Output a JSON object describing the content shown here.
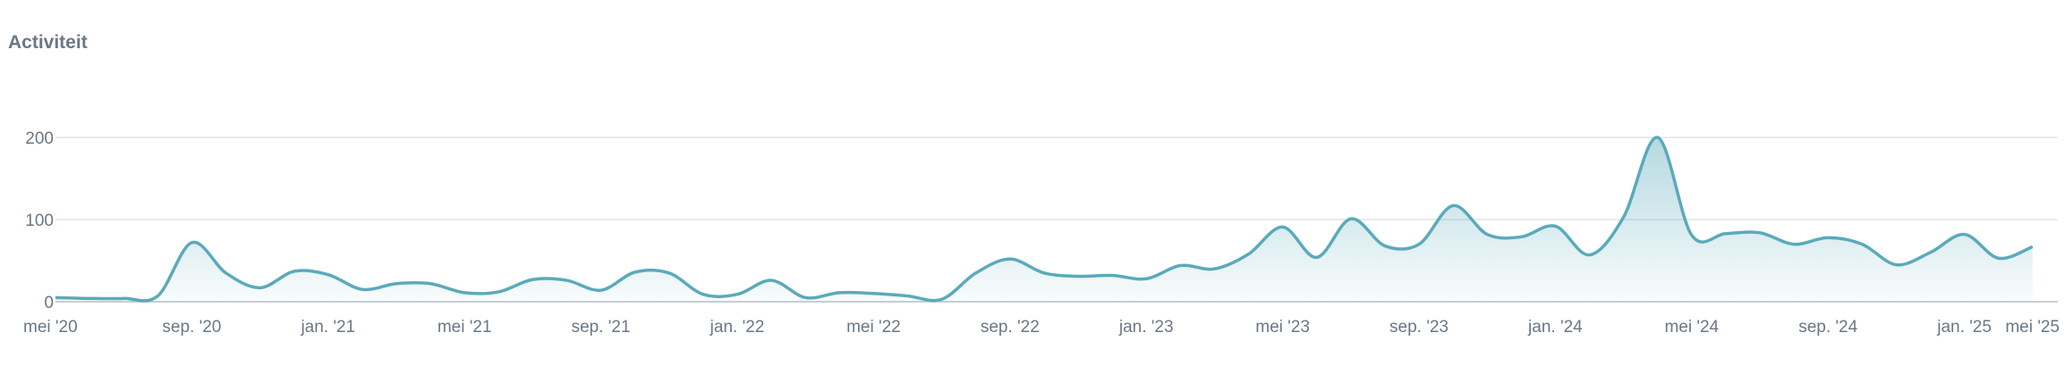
{
  "chart_title": "Activiteit",
  "chart_data": {
    "type": "area",
    "title": "Activiteit",
    "xlabel": "",
    "ylabel": "",
    "ylim": [
      0,
      245
    ],
    "yticks": [
      0,
      100,
      200
    ],
    "ytick_labels": [
      "0",
      "100",
      "200"
    ],
    "grid": true,
    "legend": "none",
    "color": "#5aaabb",
    "xtick_labels": [
      "mei '20",
      "sep. '20",
      "jan. '21",
      "mei '21",
      "sep. '21",
      "jan. '22",
      "mei '22",
      "sep. '22",
      "jan. '23",
      "mei '23",
      "sep. '23",
      "jan. '24",
      "mei '24",
      "sep. '24",
      "jan. '25",
      "mei '25"
    ],
    "x": [
      "2020-05",
      "2020-06",
      "2020-07",
      "2020-08",
      "2020-09",
      "2020-10",
      "2020-11",
      "2020-12",
      "2021-01",
      "2021-02",
      "2021-03",
      "2021-04",
      "2021-05",
      "2021-06",
      "2021-07",
      "2021-08",
      "2021-09",
      "2021-10",
      "2021-11",
      "2021-12",
      "2022-01",
      "2022-02",
      "2022-03",
      "2022-04",
      "2022-05",
      "2022-06",
      "2022-07",
      "2022-08",
      "2022-09",
      "2022-10",
      "2022-11",
      "2022-12",
      "2023-01",
      "2023-02",
      "2023-03",
      "2023-04",
      "2023-05",
      "2023-06",
      "2023-07",
      "2023-08",
      "2023-09",
      "2023-10",
      "2023-11",
      "2023-12",
      "2024-01",
      "2024-02",
      "2024-03",
      "2024-04",
      "2024-05",
      "2024-06",
      "2024-07",
      "2024-08",
      "2024-09",
      "2024-10",
      "2024-11",
      "2024-12",
      "2025-01",
      "2025-02",
      "2025-03",
      "2025-04",
      "2025-05",
      "2025-06"
    ],
    "values": [
      5,
      4,
      4,
      7,
      72,
      35,
      17,
      37,
      33,
      15,
      22,
      22,
      11,
      12,
      27,
      26,
      14,
      36,
      35,
      9,
      9,
      26,
      5,
      11,
      10,
      7,
      3,
      35,
      52,
      35,
      31,
      32,
      28,
      44,
      40,
      58,
      91,
      54,
      101,
      68,
      70,
      117,
      82,
      79,
      92,
      57,
      103,
      200,
      81,
      83,
      84,
      70,
      78,
      70,
      45,
      60,
      82,
      53,
      67,
      55,
      55,
      55
    ]
  }
}
